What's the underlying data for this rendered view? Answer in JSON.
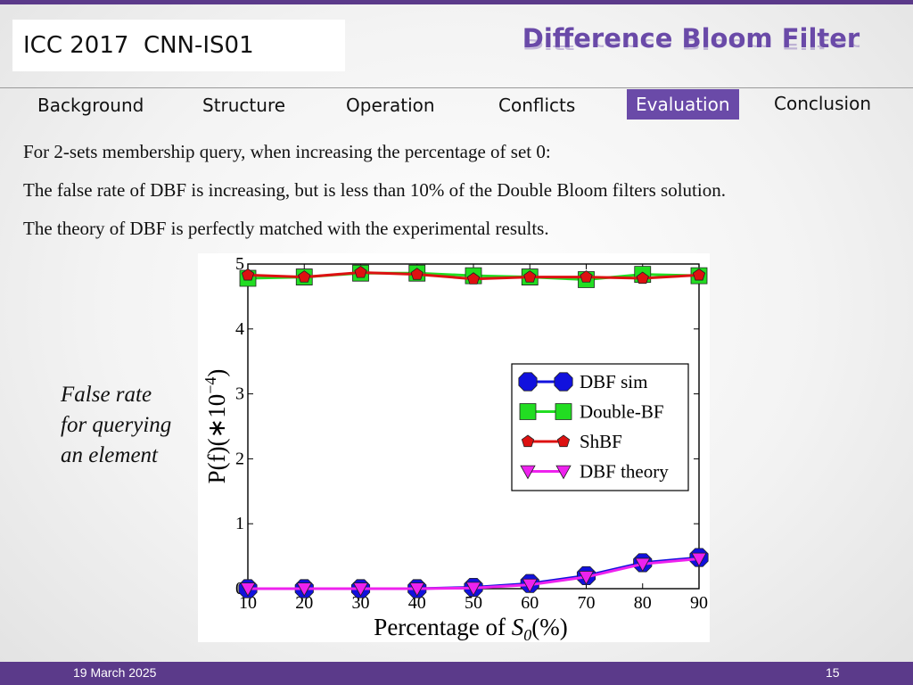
{
  "header": {
    "conference": "ICC 2017  CNN-IS01",
    "title": "Difference Bloom Filter"
  },
  "nav": {
    "items": [
      "Background",
      "Structure",
      "Operation",
      "Conflicts",
      "Evaluation",
      "Conclusion"
    ],
    "active": "Evaluation"
  },
  "body": {
    "lines": [
      "For 2-sets membership query, when increasing the percentage of set 0:",
      "The false rate of DBF is increasing, but is less than 10% of the Double Bloom filters solution.",
      "The theory of DBF is perfectly matched with the experimental results."
    ]
  },
  "side_note": {
    "lines": [
      "False rate",
      "for querying",
      "an element"
    ]
  },
  "footer": {
    "date": "19 March 2025",
    "page": "15"
  },
  "colors": {
    "accent": "#6a4aa8",
    "bar": "#5b3a8a"
  },
  "chart_data": {
    "type": "line",
    "xlabel": "Percentage of ",
    "xlabel_symbol": "S",
    "xlabel_sub": "0",
    "xlabel_tail": "(%)",
    "ylabel": "P(f)(∗10",
    "ylabel_sup": "−4",
    "ylabel_tail": ")",
    "xlim": [
      10,
      90
    ],
    "ylim": [
      0,
      5
    ],
    "x": [
      10,
      20,
      30,
      40,
      50,
      60,
      70,
      80,
      90
    ],
    "xticks": [
      10,
      20,
      30,
      40,
      50,
      60,
      70,
      80,
      90
    ],
    "yticks": [
      0,
      1,
      2,
      3,
      4,
      5
    ],
    "legend_position": "center-right",
    "series": [
      {
        "name": "DBF sim",
        "values": [
          0.0,
          0.0,
          0.0,
          0.0,
          0.02,
          0.08,
          0.2,
          0.4,
          0.48
        ],
        "color": "#1111dd",
        "marker": "octagon"
      },
      {
        "name": "Double-BF",
        "values": [
          4.78,
          4.8,
          4.86,
          4.86,
          4.82,
          4.8,
          4.76,
          4.84,
          4.82
        ],
        "color": "#22dd22",
        "marker": "square"
      },
      {
        "name": "ShBF",
        "values": [
          4.83,
          4.8,
          4.87,
          4.84,
          4.77,
          4.8,
          4.8,
          4.78,
          4.83
        ],
        "color": "#dd1111",
        "marker": "pentagon"
      },
      {
        "name": "DBF theory",
        "values": [
          0.0,
          0.0,
          0.0,
          0.0,
          0.01,
          0.06,
          0.18,
          0.38,
          0.46
        ],
        "color": "#ee22ee",
        "marker": "triangle-down"
      }
    ]
  }
}
